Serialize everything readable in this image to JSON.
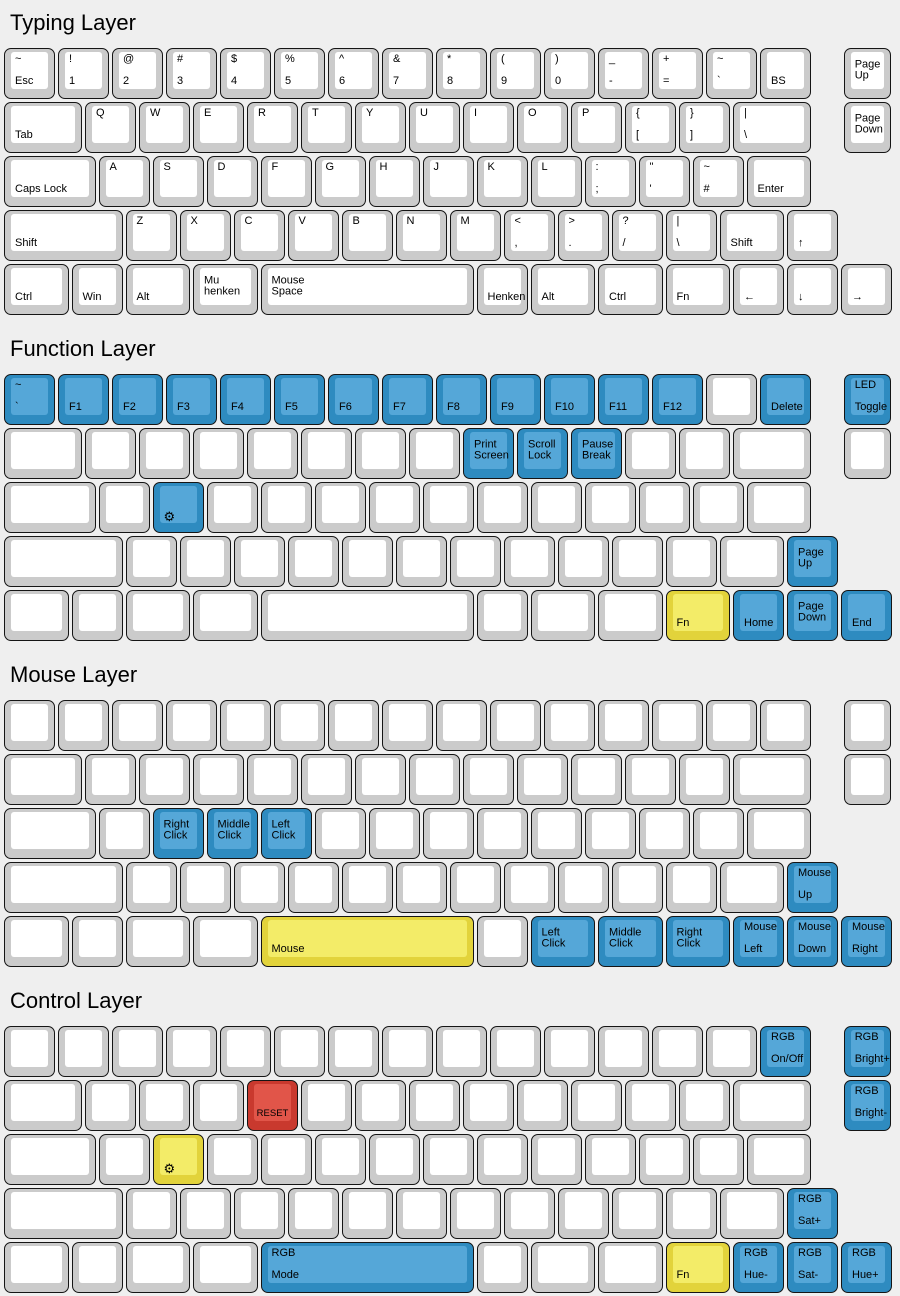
{
  "colors": {
    "background": "#efefef",
    "key_base": "#cbcbcb",
    "key_face": "#ffffff",
    "accent_blue": "#2e8bc0",
    "accent_blue_face": "#55a7d8",
    "accent_yellow": "#e2d33b",
    "accent_yellow_face": "#f3ec68",
    "accent_red": "#c9392e",
    "accent_red_face": "#e15549"
  },
  "icons": {
    "gear": "⚙"
  },
  "layers": [
    {
      "title": "Typing Layer",
      "rows": [
        [
          {
            "t": "~",
            "b": "Esc",
            "n": "key-esc"
          },
          {
            "t": "!",
            "b": "1",
            "n": "key-1"
          },
          {
            "t": "@",
            "b": "2",
            "n": "key-2"
          },
          {
            "t": "#",
            "b": "3",
            "n": "key-3"
          },
          {
            "t": "$",
            "b": "4",
            "n": "key-4"
          },
          {
            "t": "%",
            "b": "5",
            "n": "key-5"
          },
          {
            "t": "^",
            "b": "6",
            "n": "key-6"
          },
          {
            "t": "&",
            "b": "7",
            "n": "key-7"
          },
          {
            "t": "*",
            "b": "8",
            "n": "key-8"
          },
          {
            "t": "(",
            "b": "9",
            "n": "key-9"
          },
          {
            "t": ")",
            "b": "0",
            "n": "key-0"
          },
          {
            "t": "_",
            "b": "-",
            "n": "key-minus"
          },
          {
            "t": "+",
            "b": "=",
            "n": "key-equals"
          },
          {
            "t": "~",
            "b": "`",
            "n": "key-grave"
          },
          {
            "b": "BS",
            "n": "key-backspace"
          },
          {
            "x": 15.55,
            "w": 0.93,
            "b": "Page\nUp",
            "n": "key-page-up"
          }
        ],
        [
          {
            "w": 1.5,
            "b": "Tab",
            "n": "key-tab"
          },
          {
            "t": "Q"
          },
          {
            "t": "W"
          },
          {
            "t": "E"
          },
          {
            "t": "R"
          },
          {
            "t": "T"
          },
          {
            "t": "Y"
          },
          {
            "t": "U"
          },
          {
            "t": "I"
          },
          {
            "t": "O"
          },
          {
            "t": "P"
          },
          {
            "t": "{",
            "b": "[",
            "n": "key-open-bracket"
          },
          {
            "t": "}",
            "b": "]",
            "n": "key-close-bracket"
          },
          {
            "w": 1.5,
            "t": "|",
            "b": "\\",
            "n": "key-backslash"
          },
          {
            "x": 15.55,
            "w": 0.93,
            "b": "Page\nDown",
            "n": "key-page-down"
          }
        ],
        [
          {
            "w": 1.75,
            "b": "Caps Lock",
            "n": "key-caps-lock"
          },
          {
            "t": "A"
          },
          {
            "t": "S"
          },
          {
            "t": "D"
          },
          {
            "t": "F"
          },
          {
            "t": "G"
          },
          {
            "t": "H"
          },
          {
            "t": "J"
          },
          {
            "t": "K"
          },
          {
            "t": "L"
          },
          {
            "t": ":",
            "b": ";",
            "n": "key-semicolon"
          },
          {
            "t": "\"",
            "b": "'",
            "n": "key-quote"
          },
          {
            "t": "~",
            "b": "#",
            "n": "key-hash"
          },
          {
            "w": 1.25,
            "b": "Enter",
            "n": "key-enter"
          }
        ],
        [
          {
            "w": 2.25,
            "b": "Shift",
            "n": "key-left-shift"
          },
          {
            "t": "Z"
          },
          {
            "t": "X"
          },
          {
            "t": "C"
          },
          {
            "t": "V"
          },
          {
            "t": "B"
          },
          {
            "t": "N"
          },
          {
            "t": "M"
          },
          {
            "t": "<",
            "b": ",",
            "n": "key-comma"
          },
          {
            "t": ">",
            "b": ".",
            "n": "key-period"
          },
          {
            "t": "?",
            "b": "/",
            "n": "key-slash"
          },
          {
            "t": "|",
            "b": "\\",
            "n": "key-iso-backslash"
          },
          {
            "w": 1.25,
            "b": "Shift",
            "n": "key-right-shift"
          },
          {
            "b": "↑",
            "n": "key-arrow-up"
          }
        ],
        [
          {
            "w": 1.25,
            "b": "Ctrl",
            "n": "key-left-ctrl"
          },
          {
            "b": "Win",
            "n": "key-win"
          },
          {
            "w": 1.25,
            "b": "Alt",
            "n": "key-left-alt"
          },
          {
            "w": 1.25,
            "b": "Mu\nhenken",
            "n": "key-muhenken"
          },
          {
            "w": 4,
            "b": "Mouse\nSpace",
            "n": "key-space"
          },
          {
            "b": "Henken",
            "n": "key-henken"
          },
          {
            "w": 1.25,
            "b": "Alt",
            "n": "key-right-alt"
          },
          {
            "w": 1.25,
            "b": "Ctrl",
            "n": "key-right-ctrl"
          },
          {
            "w": 1.25,
            "b": "Fn",
            "n": "key-fn"
          },
          {
            "b": "←",
            "n": "key-arrow-left"
          },
          {
            "b": "↓",
            "n": "key-arrow-down"
          },
          {
            "b": "→",
            "n": "key-arrow-right"
          }
        ]
      ]
    },
    {
      "title": "Function Layer",
      "rows": [
        [
          {
            "c": "b",
            "t": "~",
            "b": "`",
            "n": "key-grave"
          },
          {
            "c": "b",
            "b": "F1"
          },
          {
            "c": "b",
            "b": "F2"
          },
          {
            "c": "b",
            "b": "F3"
          },
          {
            "c": "b",
            "b": "F4"
          },
          {
            "c": "b",
            "b": "F5"
          },
          {
            "c": "b",
            "b": "F6"
          },
          {
            "c": "b",
            "b": "F7"
          },
          {
            "c": "b",
            "b": "F8"
          },
          {
            "c": "b",
            "b": "F9"
          },
          {
            "c": "b",
            "b": "F10"
          },
          {
            "c": "b",
            "b": "F11"
          },
          {
            "c": "b",
            "b": "F12"
          },
          {},
          {
            "c": "b",
            "b": "Delete",
            "n": "key-delete"
          },
          {
            "x": 15.55,
            "w": 0.93,
            "c": "b",
            "t": "LED",
            "b": "Toggle",
            "n": "key-led-toggle"
          }
        ],
        [
          {
            "w": 1.5
          },
          {},
          {},
          {},
          {},
          {},
          {},
          {},
          {
            "c": "b",
            "b": "Print\nScreen",
            "n": "key-print-screen"
          },
          {
            "c": "b",
            "b": "Scroll\nLock",
            "n": "key-scroll-lock"
          },
          {
            "c": "b",
            "b": "Pause\nBreak",
            "n": "key-pause-break"
          },
          {},
          {},
          {
            "w": 1.5
          },
          {
            "x": 15.55,
            "w": 0.93
          }
        ],
        [
          {
            "w": 1.75
          },
          {},
          {
            "c": "b",
            "icon": "gear",
            "n": "key-settings"
          },
          {},
          {},
          {},
          {},
          {},
          {},
          {},
          {},
          {},
          {},
          {
            "w": 1.25
          }
        ],
        [
          {
            "w": 2.25
          },
          {},
          {},
          {},
          {},
          {},
          {},
          {},
          {},
          {},
          {},
          {},
          {
            "w": 1.25
          },
          {
            "c": "b",
            "b": "Page\nUp",
            "n": "key-page-up"
          }
        ],
        [
          {
            "w": 1.25
          },
          {},
          {
            "w": 1.25
          },
          {
            "w": 1.25
          },
          {
            "w": 4
          },
          {},
          {
            "w": 1.25
          },
          {
            "w": 1.25
          },
          {
            "w": 1.25,
            "c": "y",
            "b": "Fn",
            "n": "key-fn"
          },
          {
            "c": "b",
            "b": "Home",
            "n": "key-home"
          },
          {
            "c": "b",
            "b": "Page\nDown",
            "n": "key-page-down"
          },
          {
            "c": "b",
            "b": "End",
            "n": "key-end"
          }
        ]
      ]
    },
    {
      "title": "Mouse Layer",
      "rows": [
        [
          {},
          {},
          {},
          {},
          {},
          {},
          {},
          {},
          {},
          {},
          {},
          {},
          {},
          {},
          {},
          {
            "x": 15.55,
            "w": 0.93
          }
        ],
        [
          {
            "w": 1.5
          },
          {},
          {},
          {},
          {},
          {},
          {},
          {},
          {},
          {},
          {},
          {},
          {},
          {
            "w": 1.5
          },
          {
            "x": 15.55,
            "w": 0.93
          }
        ],
        [
          {
            "w": 1.75
          },
          {},
          {
            "c": "b",
            "b": "Right\nClick",
            "n": "key-right-click"
          },
          {
            "c": "b",
            "b": "Middle\nClick",
            "n": "key-middle-click"
          },
          {
            "c": "b",
            "b": "Left\nClick",
            "n": "key-left-click"
          },
          {},
          {},
          {},
          {},
          {},
          {},
          {},
          {},
          {
            "w": 1.25
          }
        ],
        [
          {
            "w": 2.25
          },
          {},
          {},
          {},
          {},
          {},
          {},
          {},
          {},
          {},
          {},
          {},
          {
            "w": 1.25
          },
          {
            "c": "b",
            "t": "Mouse",
            "b": "Up",
            "n": "key-mouse-up"
          }
        ],
        [
          {
            "w": 1.25
          },
          {},
          {
            "w": 1.25
          },
          {
            "w": 1.25
          },
          {
            "w": 4,
            "c": "y",
            "b": "Mouse",
            "n": "key-mouse-hold"
          },
          {},
          {
            "w": 1.25,
            "c": "b",
            "b": "Left\nClick",
            "n": "key-left-click"
          },
          {
            "w": 1.25,
            "c": "b",
            "b": "Middle\nClick",
            "n": "key-middle-click"
          },
          {
            "w": 1.25,
            "c": "b",
            "b": "Right\nClick",
            "n": "key-right-click"
          },
          {
            "c": "b",
            "t": "Mouse",
            "b": "Left",
            "n": "key-mouse-left"
          },
          {
            "c": "b",
            "t": "Mouse",
            "b": "Down",
            "n": "key-mouse-down"
          },
          {
            "c": "b",
            "t": "Mouse",
            "b": "Right",
            "n": "key-mouse-right"
          }
        ]
      ]
    },
    {
      "title": "Control Layer",
      "rows": [
        [
          {},
          {},
          {},
          {},
          {},
          {},
          {},
          {},
          {},
          {},
          {},
          {},
          {},
          {},
          {
            "c": "b",
            "t": "RGB",
            "b": "On/Off",
            "n": "key-rgb-on-off"
          },
          {
            "x": 15.55,
            "w": 0.93,
            "c": "b",
            "t": "RGB",
            "b": "Bright+",
            "n": "key-rgb-bright-up"
          }
        ],
        [
          {
            "w": 1.5
          },
          {},
          {},
          {},
          {
            "c": "r",
            "b": "RESET",
            "small": true,
            "n": "key-reset"
          },
          {},
          {},
          {},
          {},
          {},
          {},
          {},
          {},
          {
            "w": 1.5
          },
          {
            "x": 15.55,
            "w": 0.93,
            "c": "b",
            "t": "RGB",
            "b": "Bright-",
            "n": "key-rgb-bright-down"
          }
        ],
        [
          {
            "w": 1.75
          },
          {},
          {
            "c": "y",
            "icon": "gear",
            "n": "key-settings"
          },
          {},
          {},
          {},
          {},
          {},
          {},
          {},
          {},
          {},
          {},
          {
            "w": 1.25
          }
        ],
        [
          {
            "w": 2.25
          },
          {},
          {},
          {},
          {},
          {},
          {},
          {},
          {},
          {},
          {},
          {},
          {
            "w": 1.25
          },
          {
            "c": "b",
            "t": "RGB",
            "b": "Sat+",
            "n": "key-rgb-sat-up"
          }
        ],
        [
          {
            "w": 1.25
          },
          {},
          {
            "w": 1.25
          },
          {
            "w": 1.25
          },
          {
            "w": 4,
            "c": "b",
            "t": "RGB",
            "b": "Mode",
            "n": "key-rgb-mode"
          },
          {},
          {
            "w": 1.25
          },
          {
            "w": 1.25
          },
          {
            "w": 1.25,
            "c": "y",
            "b": "Fn",
            "n": "key-fn"
          },
          {
            "c": "b",
            "t": "RGB",
            "b": "Hue-",
            "n": "key-rgb-hue-down"
          },
          {
            "c": "b",
            "t": "RGB",
            "b": "Sat-",
            "n": "key-rgb-sat-down"
          },
          {
            "c": "b",
            "t": "RGB",
            "b": "Hue+",
            "n": "key-rgb-hue-up"
          }
        ]
      ]
    }
  ]
}
